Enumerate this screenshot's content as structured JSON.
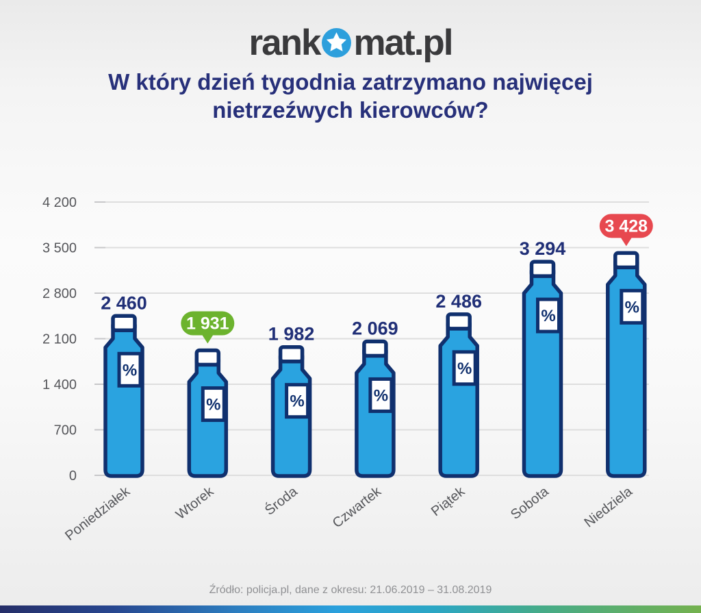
{
  "logo": {
    "text_left": "rank",
    "text_right": "mat.pl"
  },
  "title": {
    "line1": "W który dzień tygodnia zatrzymano najwięcej",
    "line2": "nietrzeźwych kierowców?"
  },
  "chart_data": {
    "type": "bar",
    "bar_style": "bottle",
    "title": "W który dzień tygodnia zatrzymano najwięcej nietrzeźwych kierowców?",
    "categories": [
      "Poniedziałek",
      "Wtorek",
      "Środa",
      "Czwartek",
      "Piątek",
      "Sobota",
      "Niedziela"
    ],
    "values": [
      2460,
      1931,
      1982,
      2069,
      2486,
      3294,
      3428
    ],
    "value_labels": [
      "2 460",
      "1 931",
      "1 982",
      "2 069",
      "2 486",
      "3 294",
      "3 428"
    ],
    "xlabel": "",
    "ylabel": "",
    "ylim": [
      0,
      4200
    ],
    "grid": true,
    "legend": false,
    "y_ticks": [
      {
        "value": 0,
        "label": "0"
      },
      {
        "value": 700,
        "label": "700"
      },
      {
        "value": 1400,
        "label": "1 400"
      },
      {
        "value": 2100,
        "label": "2 100"
      },
      {
        "value": 2800,
        "label": "2 800"
      },
      {
        "value": 3500,
        "label": "3 500"
      },
      {
        "value": 4200,
        "label": "4 200"
      }
    ],
    "bar_symbol": "%",
    "highlights": [
      {
        "index": 1,
        "type": "min",
        "badge_color": "#6cb32e",
        "label": "1 931"
      },
      {
        "index": 6,
        "type": "max",
        "badge_color": "#e7484f",
        "label": "3 428"
      }
    ]
  },
  "footer": {
    "source": "Źródło: policja.pl, dane z okresu: 21.06.2019 – 31.08.2019"
  },
  "colors": {
    "bottle_fill": "#2aa3e0",
    "bottle_stroke": "#10306e",
    "value_text": "#202f77",
    "title_text": "#27307a",
    "axis_text": "#55565a",
    "gridline": "#dedede",
    "badge_min": "#6cb32e",
    "badge_max": "#e7484f",
    "badge_text": "#ffffff",
    "logo_text": "#3a3a3c",
    "logo_star_bg": "#2d9fdc",
    "logo_star": "#ffffff",
    "source_text": "#8f9093"
  }
}
